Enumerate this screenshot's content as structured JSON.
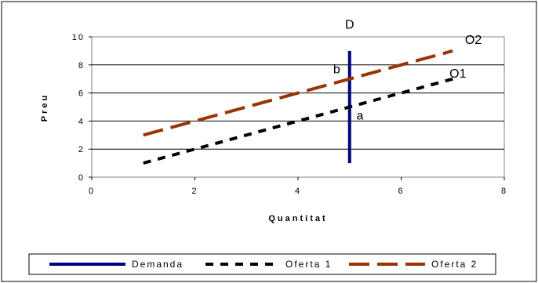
{
  "chart_data": {
    "type": "line",
    "title": "",
    "xlabel": "Quantitat",
    "ylabel": "Preu",
    "xlim": [
      0,
      8
    ],
    "ylim": [
      0,
      10
    ],
    "x_ticks": [
      "0",
      "2",
      "4",
      "6",
      "8"
    ],
    "y_ticks": [
      "0",
      "2",
      "4",
      "6",
      "8",
      "10"
    ],
    "grid": "horizontal",
    "legend_position": "bottom",
    "series": [
      {
        "name": "Demanda",
        "color": "#000080",
        "style": "solid",
        "points": [
          [
            5,
            1
          ],
          [
            5,
            9
          ]
        ]
      },
      {
        "name": "Oferta 1",
        "color": "#000000",
        "style": "dotted",
        "points": [
          [
            1,
            1
          ],
          [
            7,
            7
          ]
        ]
      },
      {
        "name": "Oferta 2",
        "color": "#993300",
        "style": "dashed",
        "points": [
          [
            1,
            3
          ],
          [
            7,
            9
          ]
        ]
      }
    ],
    "annotations": [
      {
        "text": "D",
        "x": 5,
        "y": 10.6
      },
      {
        "text": "O2",
        "x": 7.4,
        "y": 9.5
      },
      {
        "text": "O1",
        "x": 7.1,
        "y": 7.1
      },
      {
        "text": "b",
        "x": 4.75,
        "y": 7.4
      },
      {
        "text": "a",
        "x": 5.2,
        "y": 4.1
      }
    ]
  }
}
